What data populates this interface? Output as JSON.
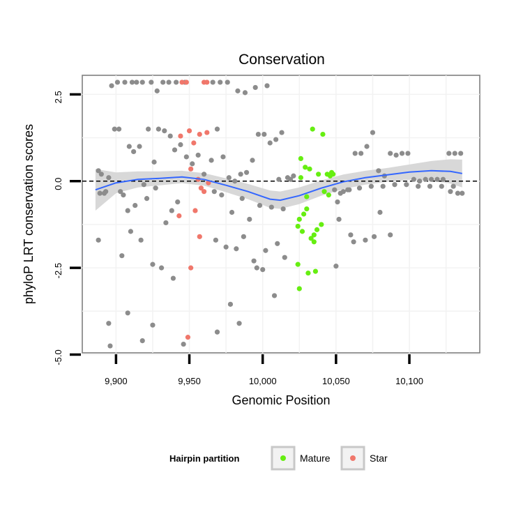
{
  "chart_data": {
    "type": "scatter",
    "title": "Conservation",
    "xlabel": "Genomic Position",
    "ylabel": "phyloP LRT conservation scores",
    "xlim": [
      9877,
      10148
    ],
    "ylim": [
      -4.95,
      3.05
    ],
    "x_ticks": [
      9900,
      9950,
      10000,
      10050,
      10100
    ],
    "x_tick_labels": [
      "9,900",
      "9,950",
      "10,000",
      "10,050",
      "10,100"
    ],
    "y_ticks": [
      2.5,
      0.0,
      -2.5,
      -5.0
    ],
    "y_tick_labels": [
      "2.5",
      "0.0",
      "-2.5",
      "-5.0"
    ],
    "reference_line": {
      "y": 0,
      "style": "dashed"
    },
    "legend": {
      "title": "Hairpin partition",
      "placement": "bottom",
      "entries": [
        {
          "label": "Mature",
          "color": "#66ee11"
        },
        {
          "label": "Star",
          "color": "#f0776b"
        }
      ]
    },
    "colors": {
      "other": "#8c8c8c",
      "mature": "#66ee11",
      "star": "#f0776b",
      "smooth_line": "#3366ff",
      "confidence_band": "#d4d4d4"
    },
    "smooth": {
      "x": [
        9886,
        9900,
        9915,
        9930,
        9945,
        9960,
        9975,
        9990,
        10005,
        10012,
        10025,
        10040,
        10055,
        10070,
        10085,
        10100,
        10115,
        10128,
        10136
      ],
      "y": [
        -0.25,
        -0.05,
        0.05,
        0.08,
        0.12,
        0.05,
        -0.12,
        -0.3,
        -0.52,
        -0.55,
        -0.42,
        -0.2,
        -0.02,
        0.1,
        0.18,
        0.26,
        0.3,
        0.28,
        0.22
      ],
      "band_halfwidth": [
        0.6,
        0.3,
        0.23,
        0.2,
        0.18,
        0.18,
        0.2,
        0.22,
        0.25,
        0.25,
        0.24,
        0.22,
        0.21,
        0.2,
        0.2,
        0.22,
        0.28,
        0.35,
        0.4
      ]
    },
    "series": [
      {
        "name": "Mature",
        "x": [
          10026,
          10029,
          10032,
          10034,
          10038,
          10041,
          10044,
          10047,
          10026,
          10030,
          10028,
          10025,
          10024,
          10027,
          10035,
          10033,
          10037,
          10040,
          10042,
          10045,
          10046,
          10048,
          10031,
          10036,
          10024,
          10030,
          10035,
          10025
        ],
        "y": [
          0.1,
          0.4,
          0.35,
          1.5,
          0.2,
          1.35,
          0.2,
          0.25,
          0.65,
          -0.8,
          -0.95,
          -1.1,
          -1.3,
          -1.45,
          -1.55,
          -1.65,
          -1.4,
          -1.25,
          -0.3,
          -0.4,
          0.15,
          0.2,
          -2.65,
          -2.6,
          -2.4,
          -0.45,
          -1.75,
          -3.1
        ]
      },
      {
        "name": "Star",
        "x": [
          9945,
          9948,
          9960,
          9962,
          9944,
          9950,
          9957,
          9962,
          9953,
          9951,
          9963,
          9958,
          9960,
          9956,
          9943,
          9954,
          9957,
          9951,
          9949
        ],
        "y": [
          2.85,
          2.85,
          2.85,
          2.85,
          1.3,
          1.45,
          1.35,
          1.4,
          1.1,
          0.35,
          -0.05,
          -0.2,
          -0.3,
          0.05,
          -1.0,
          -0.85,
          -1.6,
          -2.5,
          -4.5
        ]
      },
      {
        "name": "",
        "x": [
          9888,
          9890,
          9892,
          9895,
          9899,
          9902,
          9905,
          9909,
          9912,
          9916,
          9919,
          9922,
          9926,
          9929,
          9933,
          9937,
          9940,
          9944,
          9948,
          9952,
          9956,
          9960,
          9965,
          9969,
          9973,
          9977,
          9981,
          9985,
          9989,
          9993,
          9997,
          10001,
          10005,
          10009,
          10013,
          10017,
          10021,
          10051,
          10055,
          10059,
          10063,
          10067,
          10071,
          10075,
          10079,
          10083,
          10087,
          10091,
          10095,
          10099,
          10103,
          10107,
          10111,
          10115,
          10119,
          10123,
          10127,
          10131,
          10135,
          9897,
          9901,
          9906,
          9911,
          9914,
          9918,
          9924,
          9928,
          9932,
          9936,
          9941,
          9947,
          9966,
          9971,
          9976,
          9983,
          9988,
          9995,
          10003,
          10011,
          10019,
          10049,
          10053,
          10058,
          10066,
          10074,
          10082,
          10090,
          10098,
          10106,
          10114,
          10122,
          10130,
          9889,
          9893,
          9903,
          9908,
          9913,
          9921,
          9927,
          9934,
          9938,
          9942,
          9967,
          9972,
          9979,
          9986,
          9991,
          9998,
          10006,
          10014,
          10052,
          10060,
          10070,
          10080,
          9888,
          9895,
          9904,
          9910,
          9917,
          9925,
          9931,
          9939,
          9968,
          9975,
          9982,
          9987,
          9994,
          10000,
          10008,
          10015,
          9896,
          9908,
          9918,
          9925,
          9946,
          9969,
          9978,
          9984,
          9996,
          10002,
          10010,
          10050,
          10062,
          10076,
          10087,
          10133,
          10136,
          10128
        ],
        "y": [
          0.3,
          0.2,
          -0.35,
          0.1,
          1.5,
          1.5,
          -0.4,
          1.0,
          0.85,
          1.0,
          -0.1,
          1.5,
          0.55,
          1.5,
          1.45,
          1.3,
          0.9,
          1.05,
          0.7,
          0.5,
          0.75,
          0.2,
          0.6,
          1.5,
          0.7,
          0.1,
          0.0,
          0.2,
          0.25,
          0.6,
          1.35,
          1.35,
          1.1,
          1.2,
          1.4,
          0.1,
          0.15,
          -0.6,
          -0.3,
          -0.25,
          0.8,
          0.8,
          1.0,
          1.4,
          0.3,
          0.15,
          0.8,
          0.75,
          0.8,
          0.8,
          0.05,
          0.0,
          0.05,
          0.05,
          0.05,
          0.05,
          0.8,
          0.8,
          0.8,
          2.75,
          2.85,
          2.85,
          2.85,
          2.85,
          2.85,
          2.85,
          2.6,
          2.85,
          2.85,
          2.85,
          2.85,
          2.85,
          2.85,
          2.85,
          2.6,
          2.55,
          2.7,
          2.75,
          0.05,
          0.05,
          -0.25,
          -0.35,
          -0.25,
          -0.2,
          -0.15,
          -0.15,
          -0.1,
          -0.1,
          -0.15,
          -0.15,
          -0.15,
          -0.15,
          -0.35,
          -0.3,
          -0.3,
          -0.85,
          -0.7,
          -0.5,
          -0.2,
          -1.2,
          -0.85,
          -0.6,
          -0.3,
          -0.4,
          -0.9,
          -0.5,
          -1.1,
          -0.7,
          -0.75,
          -0.8,
          -1.1,
          -1.55,
          -1.7,
          -0.9,
          -1.7,
          -4.1,
          -2.15,
          -1.45,
          -1.7,
          -2.4,
          -2.5,
          -2.8,
          -1.7,
          -1.9,
          -1.95,
          -1.6,
          -2.3,
          -2.55,
          -3.3,
          -2.2,
          -4.75,
          -3.8,
          -4.6,
          -4.15,
          -4.7,
          -4.35,
          -3.55,
          -4.1,
          -2.5,
          -2.0,
          -1.8,
          -2.45,
          -1.75,
          -1.6,
          -1.55,
          -0.35,
          -0.35,
          -0.3
        ]
      }
    ]
  }
}
